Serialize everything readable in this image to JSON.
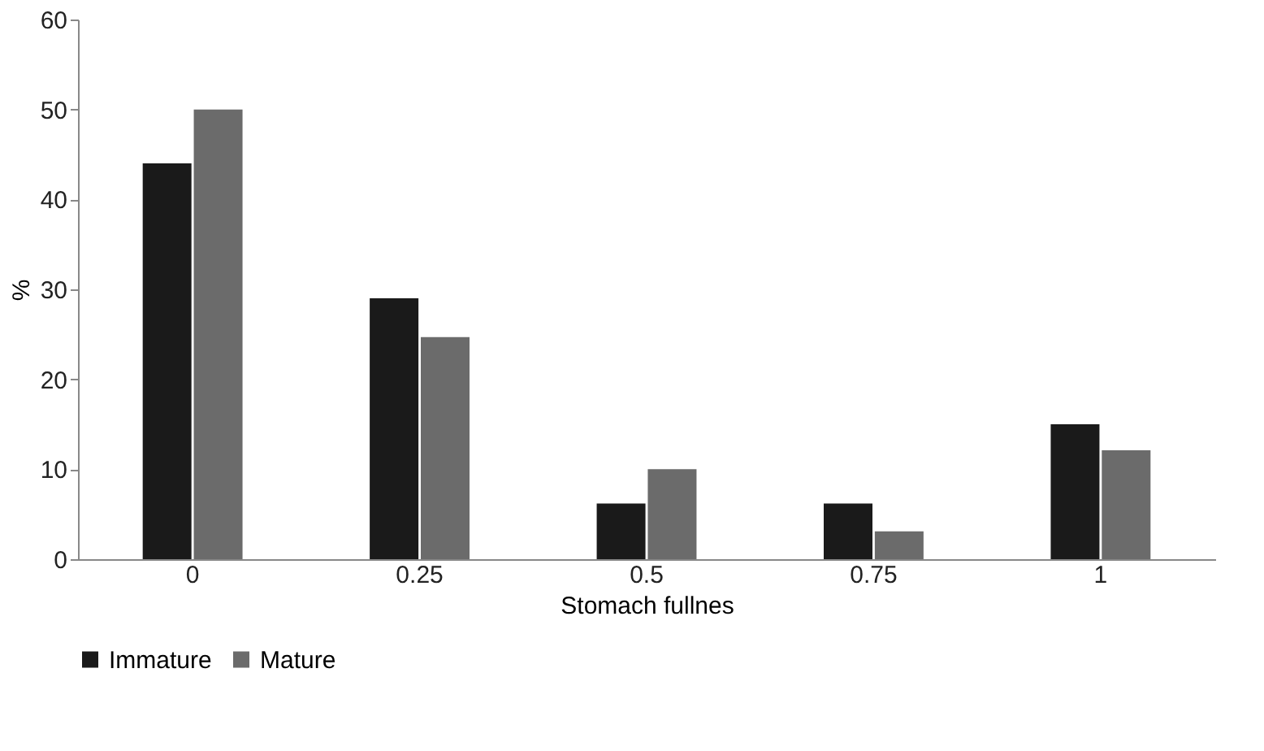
{
  "chart_data": {
    "type": "bar",
    "xlabel": "Stomach fullnes",
    "ylabel": "%",
    "categories": [
      "0",
      "0.25",
      "0.5",
      "0.75",
      "1"
    ],
    "series": [
      {
        "name": "Immature",
        "color": "#1a1a1a",
        "values": [
          44,
          29,
          6.2,
          6.2,
          15
        ]
      },
      {
        "name": "Mature",
        "color": "#6b6b6b",
        "values": [
          50,
          24.7,
          10,
          3.1,
          12.1
        ]
      }
    ],
    "ylim": [
      0,
      60
    ],
    "yticks": [
      0,
      10,
      20,
      30,
      40,
      50,
      60
    ],
    "grid": false,
    "legend": "bottom"
  }
}
